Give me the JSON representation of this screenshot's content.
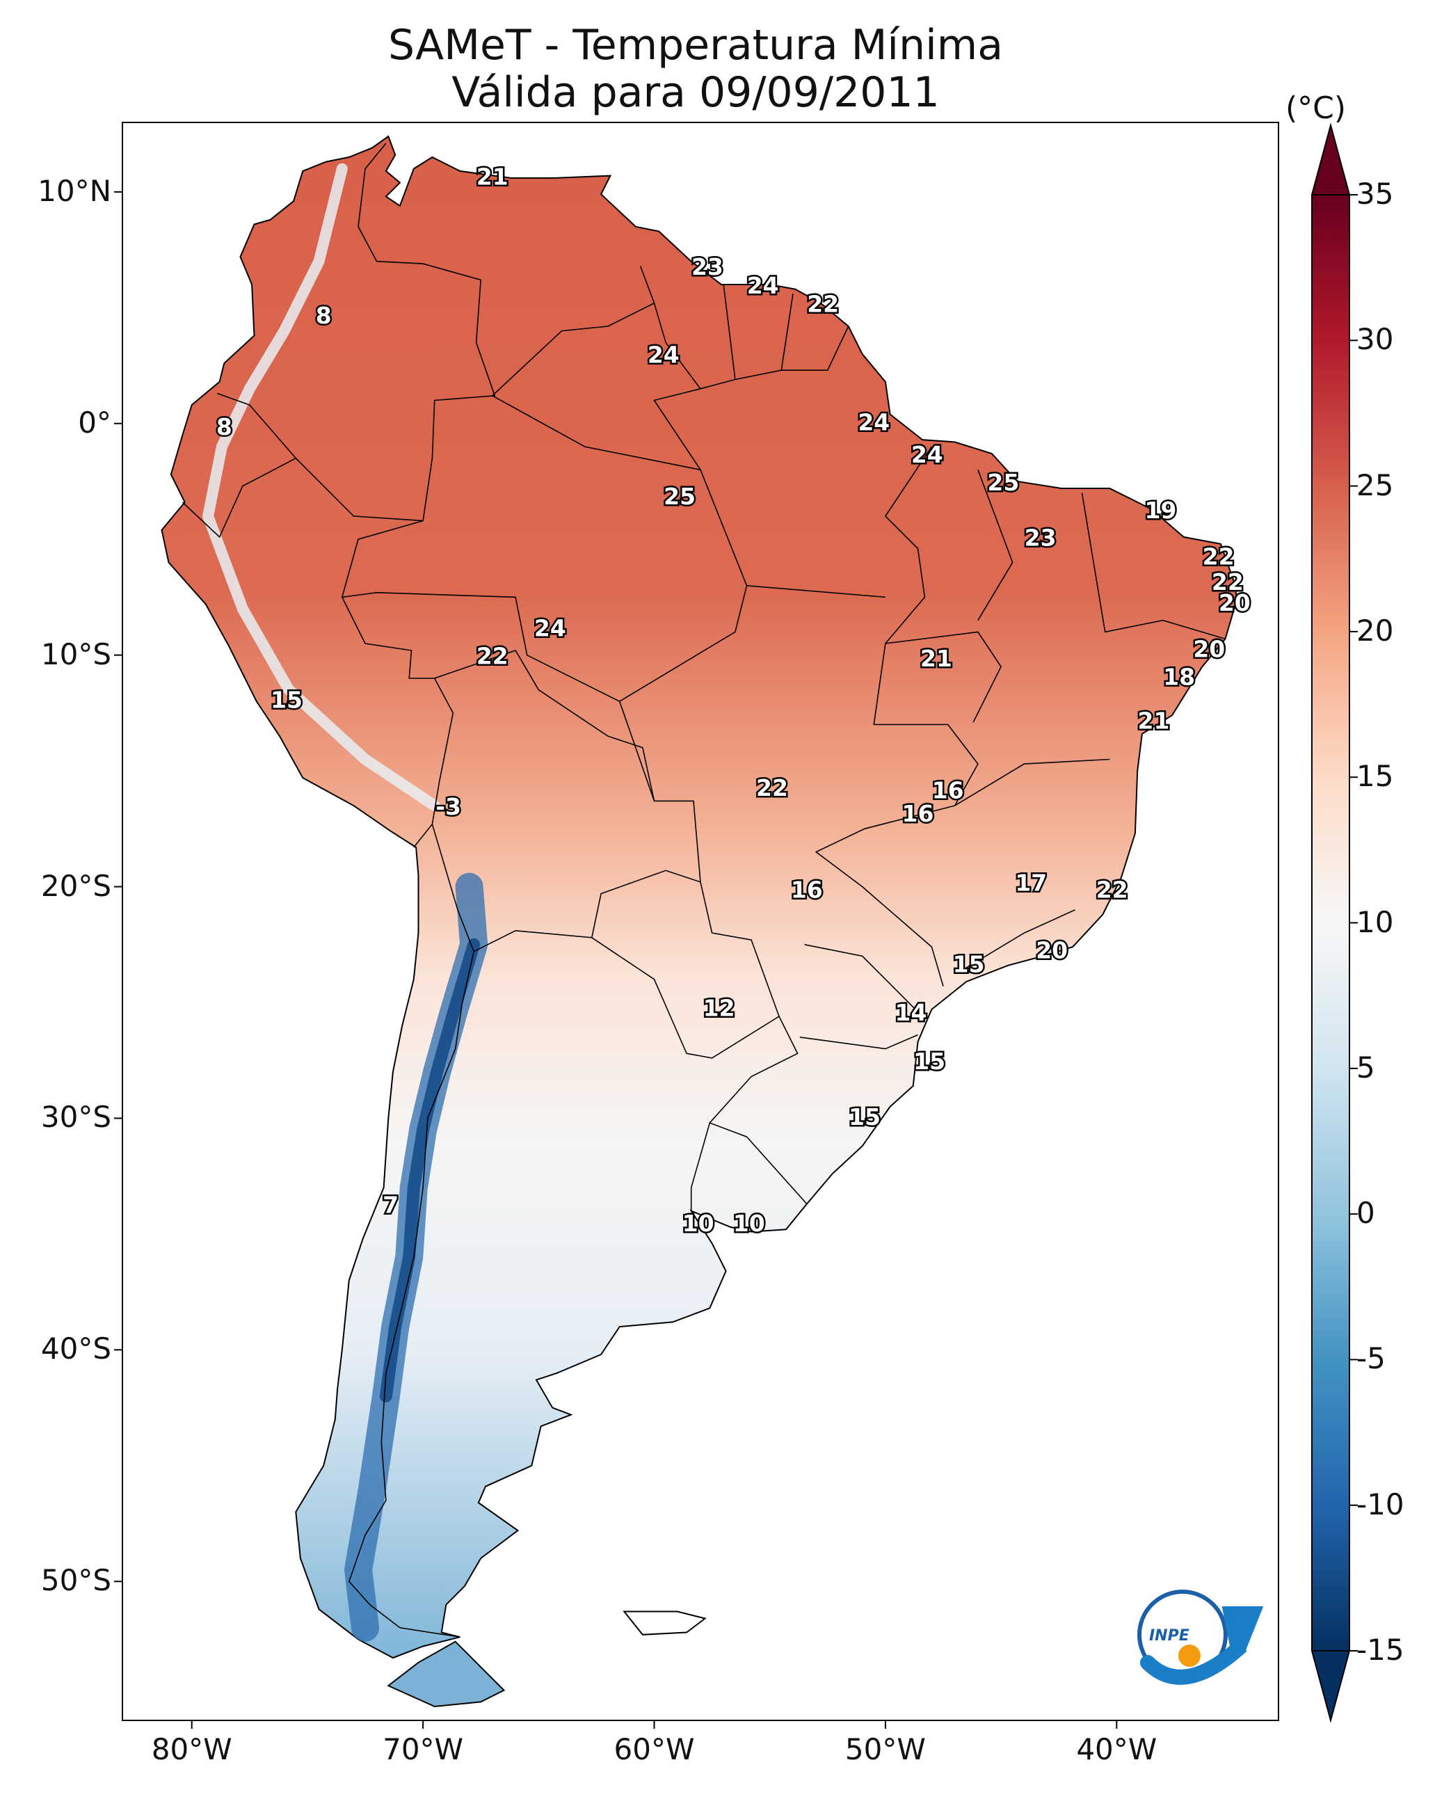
{
  "title": "SAMeT - Temperatura Mínima",
  "subtitle": "Válida para 09/09/2011",
  "latitude_ticks": [
    "10°N",
    "0°",
    "10°S",
    "20°S",
    "30°S",
    "40°S",
    "50°S"
  ],
  "longitude_ticks": [
    "80°W",
    "70°W",
    "60°W",
    "50°W",
    "40°W"
  ],
  "colorbar": {
    "unit": "(°C)",
    "range": [
      -15,
      35
    ],
    "ticks": [
      "35",
      "30",
      "25",
      "20",
      "15",
      "10",
      "5",
      "0",
      "-5",
      "-10",
      "-15"
    ],
    "colormap": "RdBu_r",
    "colors": [
      "#053061",
      "#2166ac",
      "#4393c3",
      "#92c5de",
      "#d1e5f0",
      "#f7f7f7",
      "#fddbc7",
      "#f4a582",
      "#d6604d",
      "#b2182b",
      "#67001f"
    ]
  },
  "map": {
    "projection": "plate carree",
    "extent": {
      "lon": [
        -83,
        -33
      ],
      "lat": [
        -56,
        13
      ]
    },
    "region": "South America"
  },
  "labels": [
    {
      "value": "21",
      "lon": -67.0,
      "lat": 10.6
    },
    {
      "value": "23",
      "lon": -57.7,
      "lat": 6.7
    },
    {
      "value": "24",
      "lon": -55.3,
      "lat": 5.9
    },
    {
      "value": "22",
      "lon": -52.7,
      "lat": 5.1
    },
    {
      "value": "8",
      "lon": -74.3,
      "lat": 4.6
    },
    {
      "value": "24",
      "lon": -59.6,
      "lat": 2.9
    },
    {
      "value": "8",
      "lon": -78.6,
      "lat": -0.2
    },
    {
      "value": "24",
      "lon": -50.5,
      "lat": 0.0
    },
    {
      "value": "24",
      "lon": -48.2,
      "lat": -1.4
    },
    {
      "value": "25",
      "lon": -58.9,
      "lat": -3.2
    },
    {
      "value": "25",
      "lon": -44.9,
      "lat": -2.6
    },
    {
      "value": "19",
      "lon": -38.1,
      "lat": -3.8
    },
    {
      "value": "23",
      "lon": -43.3,
      "lat": -5.0
    },
    {
      "value": "22",
      "lon": -35.6,
      "lat": -5.8
    },
    {
      "value": "22",
      "lon": -35.2,
      "lat": -6.9
    },
    {
      "value": "20",
      "lon": -34.9,
      "lat": -7.8
    },
    {
      "value": "24",
      "lon": -64.5,
      "lat": -8.9
    },
    {
      "value": "22",
      "lon": -67.0,
      "lat": -10.1
    },
    {
      "value": "21",
      "lon": -47.8,
      "lat": -10.2
    },
    {
      "value": "20",
      "lon": -36.0,
      "lat": -9.8
    },
    {
      "value": "18",
      "lon": -37.3,
      "lat": -11.0
    },
    {
      "value": "15",
      "lon": -75.9,
      "lat": -12.0
    },
    {
      "value": "21",
      "lon": -38.4,
      "lat": -12.9
    },
    {
      "value": "22",
      "lon": -54.9,
      "lat": -15.8
    },
    {
      "value": "16",
      "lon": -47.3,
      "lat": -15.9
    },
    {
      "value": "16",
      "lon": -48.6,
      "lat": -16.9
    },
    {
      "value": "-3",
      "lon": -68.9,
      "lat": -16.6
    },
    {
      "value": "16",
      "lon": -53.4,
      "lat": -20.2
    },
    {
      "value": "17",
      "lon": -43.7,
      "lat": -19.9
    },
    {
      "value": "22",
      "lon": -40.2,
      "lat": -20.2
    },
    {
      "value": "20",
      "lon": -42.8,
      "lat": -22.8
    },
    {
      "value": "15",
      "lon": -46.4,
      "lat": -23.4
    },
    {
      "value": "12",
      "lon": -57.2,
      "lat": -25.3
    },
    {
      "value": "14",
      "lon": -48.9,
      "lat": -25.5
    },
    {
      "value": "15",
      "lon": -48.1,
      "lat": -27.6
    },
    {
      "value": "15",
      "lon": -50.9,
      "lat": -30.0
    },
    {
      "value": "7",
      "lon": -71.4,
      "lat": -33.8
    },
    {
      "value": "10",
      "lon": -58.1,
      "lat": -34.6
    },
    {
      "value": "10",
      "lon": -55.9,
      "lat": -34.6
    }
  ],
  "logo": {
    "text": "INPE"
  }
}
